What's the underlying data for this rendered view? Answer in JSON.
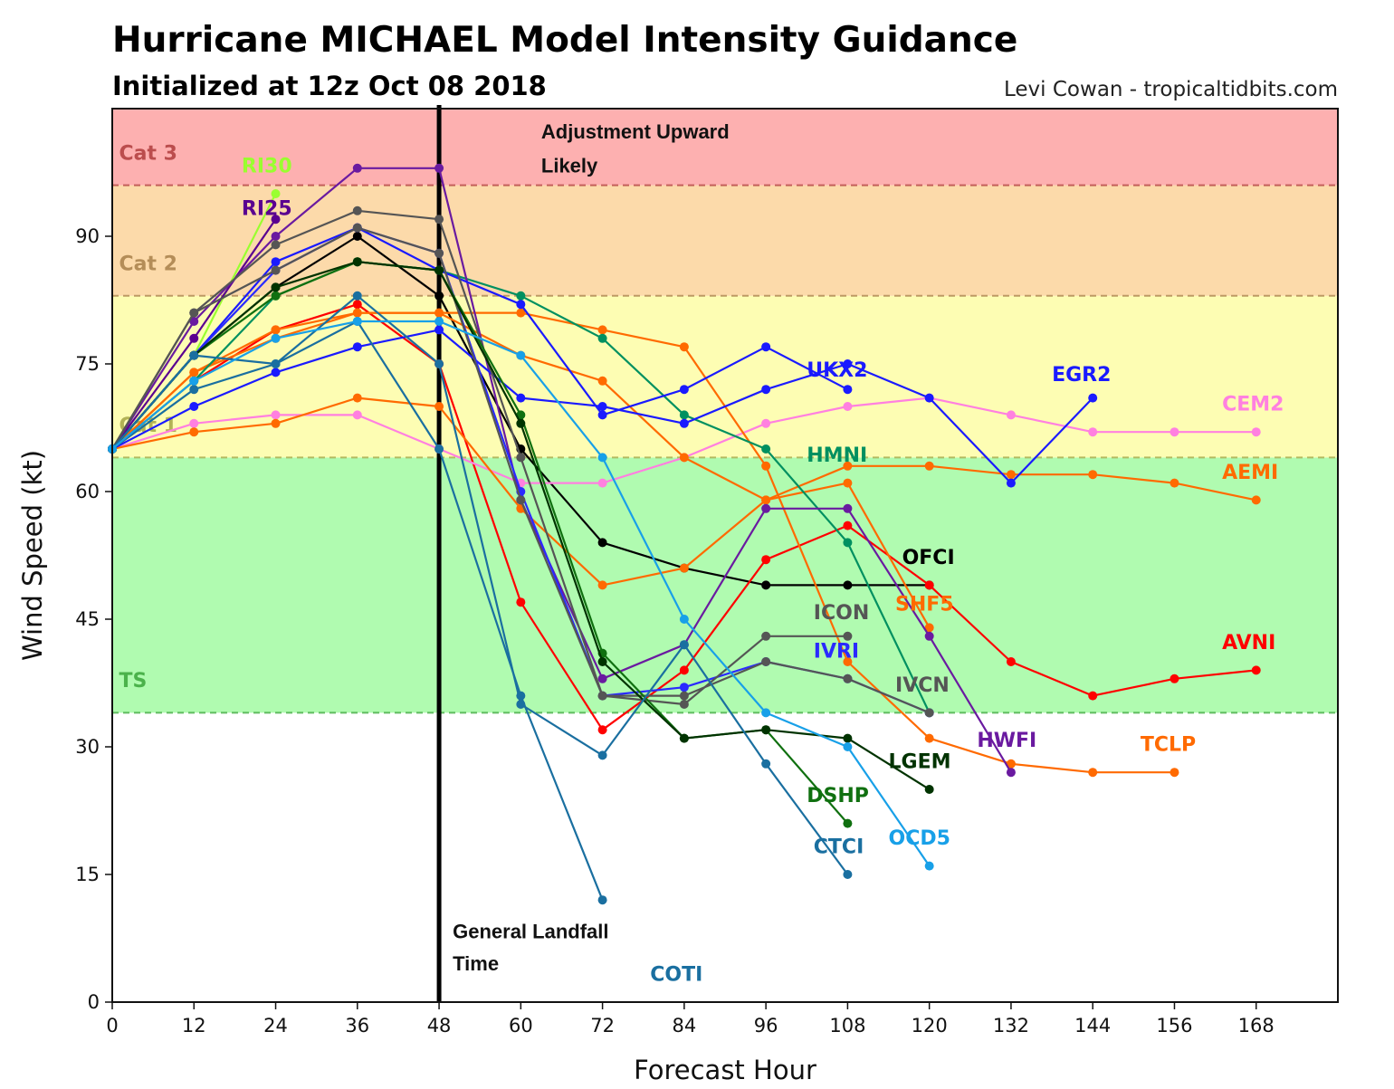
{
  "chart_data": {
    "type": "line",
    "title": "Hurricane MICHAEL Model Intensity Guidance",
    "subtitle": "Initialized at 12z Oct 08 2018",
    "credit": "Levi Cowan - tropicaltidbits.com",
    "xlabel": "Forecast Hour",
    "ylabel": "Wind Speed (kt)",
    "xlim": [
      0,
      180
    ],
    "ylim": [
      0,
      105
    ],
    "xticks": [
      0,
      12,
      24,
      36,
      48,
      60,
      72,
      84,
      96,
      108,
      120,
      132,
      144,
      156,
      168
    ],
    "yticks": [
      0,
      15,
      30,
      45,
      60,
      75,
      90
    ],
    "grid": false,
    "legend": "none (inline series labels)",
    "bands": [
      {
        "name": "TS",
        "from": 34,
        "to": 64,
        "color": "#b0fbb0",
        "label_color": "#3aa63a",
        "label_y": 37
      },
      {
        "name": "Cat 1",
        "from": 64,
        "to": 83,
        "color": "#fdfdb3",
        "label_color": "#a5a545",
        "label_y": 67
      },
      {
        "name": "Cat 2",
        "from": 83,
        "to": 96,
        "color": "#fcdaaa",
        "label_color": "#a8804a",
        "label_y": 86
      },
      {
        "name": "Cat 3",
        "from": 96,
        "to": 105,
        "color": "#fdb0b0",
        "label_color": "#b03c3c",
        "label_y": 99
      }
    ],
    "landfall_line_x": 48,
    "annotations": [
      {
        "text": "Adjustment Upward",
        "x": 63,
        "y": 101.5
      },
      {
        "text": "Likely",
        "x": 63,
        "y": 97.5
      },
      {
        "text": "General Landfall",
        "x": 50,
        "y": 7.5
      },
      {
        "text": "Time",
        "x": 50,
        "y": 3.7
      }
    ],
    "series": [
      {
        "name": "OFCI",
        "color": "#000000",
        "x": [
          0,
          12,
          24,
          36,
          48,
          60,
          72,
          84,
          96,
          108,
          120
        ],
        "values": [
          65,
          76,
          84,
          90,
          83,
          65,
          54,
          51,
          49,
          49,
          49
        ],
        "label_pos": [
          116,
          51.5
        ]
      },
      {
        "name": "AVNI",
        "color": "#ff0000",
        "x": [
          0,
          12,
          24,
          36,
          48,
          60,
          72,
          84,
          96,
          108,
          120,
          132,
          144,
          156,
          168
        ],
        "values": [
          65,
          73,
          79,
          82,
          75,
          47,
          32,
          39,
          52,
          56,
          49,
          40,
          36,
          38,
          39
        ],
        "label_pos": [
          163,
          41.5
        ]
      },
      {
        "name": "CEM2",
        "color": "#ff80e0",
        "x": [
          0,
          12,
          24,
          36,
          48,
          60,
          72,
          84,
          96,
          108,
          120,
          132,
          144,
          156,
          168
        ],
        "values": [
          65,
          68,
          69,
          69,
          65,
          61,
          61,
          64,
          68,
          70,
          71,
          69,
          67,
          67,
          67
        ],
        "label_pos": [
          163,
          69.5
        ]
      },
      {
        "name": "AEMI",
        "color": "#ff6a00",
        "x": [
          0,
          12,
          24,
          36,
          48,
          60,
          72,
          84,
          96,
          108,
          120,
          132,
          144,
          156,
          168
        ],
        "values": [
          65,
          67,
          68,
          71,
          70,
          58,
          49,
          51,
          59,
          63,
          63,
          62,
          62,
          61,
          59
        ],
        "label_pos": [
          163,
          61.5
        ]
      },
      {
        "name": "TCLP",
        "color": "#ff6a00",
        "x": [
          0,
          12,
          24,
          36,
          48,
          60,
          72,
          84,
          96,
          108,
          120,
          132,
          144,
          156
        ],
        "values": [
          65,
          74,
          79,
          81,
          81,
          81,
          79,
          77,
          63,
          40,
          31,
          28,
          27,
          27
        ],
        "label_pos": [
          151,
          29.5
        ]
      },
      {
        "name": "SHF5",
        "color": "#ff6a00",
        "x": [
          0,
          12,
          24,
          36,
          48,
          60,
          72,
          84,
          96,
          108,
          120
        ],
        "values": [
          65,
          74,
          78,
          81,
          81,
          76,
          73,
          64,
          59,
          61,
          44
        ],
        "label_pos": [
          115,
          46
        ]
      },
      {
        "name": "HMNI",
        "color": "#009060",
        "x": [
          0,
          12,
          24,
          36,
          48,
          60,
          72,
          84,
          96,
          108,
          120
        ],
        "values": [
          65,
          73,
          83,
          87,
          86,
          83,
          78,
          69,
          65,
          54,
          34
        ],
        "label_pos": [
          102,
          63.5
        ]
      },
      {
        "name": "RI30",
        "color": "#9aff30",
        "x": [
          0,
          12,
          24
        ],
        "values": [
          65,
          76,
          95
        ],
        "label_pos": [
          19,
          97.5
        ]
      },
      {
        "name": "RI25",
        "color": "#5a0090",
        "x": [
          0,
          12,
          24
        ],
        "values": [
          65,
          78,
          92
        ],
        "label_pos": [
          19,
          92.5
        ]
      },
      {
        "name": "HWFI",
        "color": "#6a1aa0",
        "x": [
          0,
          12,
          24,
          36,
          48,
          60,
          72,
          84,
          96,
          108,
          120,
          132
        ],
        "values": [
          65,
          80,
          90,
          98,
          98,
          59,
          38,
          42,
          58,
          58,
          43,
          27
        ],
        "label_pos": [
          127,
          30
        ]
      },
      {
        "name": "UKX2",
        "color": "#1a1aff",
        "x": [
          0,
          12,
          24,
          36,
          48,
          60,
          72,
          84,
          96,
          108
        ],
        "values": [
          65,
          76,
          87,
          91,
          86,
          82,
          69,
          72,
          77,
          72
        ],
        "label_pos": [
          102,
          73.5
        ]
      },
      {
        "name": "EGR2",
        "color": "#1a1aff",
        "x": [
          0,
          12,
          24,
          36,
          48,
          60,
          72,
          84,
          96,
          108,
          120,
          132,
          144
        ],
        "values": [
          65,
          70,
          74,
          77,
          79,
          71,
          70,
          68,
          72,
          75,
          71,
          61,
          71
        ],
        "label_pos": [
          138,
          73
        ]
      },
      {
        "name": "IVRI",
        "color": "#2a2aff",
        "x": [
          0,
          12,
          24,
          36,
          48,
          60,
          72,
          84,
          96,
          108,
          120
        ],
        "values": [
          65,
          76,
          86,
          91,
          88,
          60,
          36,
          37,
          40,
          38,
          34
        ],
        "label_pos": [
          103,
          40.5
        ]
      },
      {
        "name": "ICON",
        "color": "#555555",
        "x": [
          0,
          12,
          24,
          36,
          48,
          60,
          72,
          84,
          96,
          108
        ],
        "values": [
          65,
          81,
          89,
          93,
          92,
          64,
          36,
          35,
          43,
          43
        ],
        "label_pos": [
          103,
          45
        ]
      },
      {
        "name": "IVCN",
        "color": "#555555",
        "x": [
          0,
          12,
          24,
          36,
          48,
          60,
          72,
          84,
          96,
          108,
          120
        ],
        "values": [
          65,
          81,
          86,
          91,
          88,
          59,
          36,
          36,
          40,
          38,
          34
        ],
        "label_pos": [
          115,
          36.5
        ]
      },
      {
        "name": "DSHP",
        "color": "#107010",
        "x": [
          0,
          12,
          24,
          36,
          48,
          60,
          72,
          84,
          96,
          108
        ],
        "values": [
          65,
          76,
          83,
          87,
          86,
          69,
          41,
          31,
          32,
          21
        ],
        "label_pos": [
          102,
          23.5
        ]
      },
      {
        "name": "LGEM",
        "color": "#003300",
        "x": [
          0,
          12,
          24,
          36,
          48,
          60,
          72,
          84,
          96,
          108,
          120
        ],
        "values": [
          65,
          76,
          84,
          87,
          86,
          68,
          40,
          31,
          32,
          31,
          25
        ],
        "label_pos": [
          114,
          27.5
        ]
      },
      {
        "name": "CTCI",
        "color": "#1a6fa0",
        "x": [
          0,
          12,
          24,
          36,
          48,
          60,
          72,
          84,
          96,
          108
        ],
        "values": [
          65,
          72,
          75,
          83,
          75,
          35,
          29,
          42,
          28,
          15
        ],
        "label_pos": [
          103,
          17.5
        ]
      },
      {
        "name": "COTI",
        "color": "#1a6fa0",
        "x": [
          0,
          12,
          24,
          36,
          48,
          60,
          72
        ],
        "values": [
          65,
          76,
          75,
          80,
          65,
          36,
          12
        ],
        "label_pos": [
          79,
          2.5
        ]
      },
      {
        "name": "OCD5",
        "color": "#18a0e8",
        "x": [
          0,
          12,
          24,
          36,
          48,
          60,
          72,
          84,
          96,
          108,
          120
        ],
        "values": [
          65,
          73,
          78,
          80,
          80,
          76,
          64,
          45,
          34,
          30,
          16
        ],
        "label_pos": [
          114,
          18.5
        ]
      }
    ]
  }
}
